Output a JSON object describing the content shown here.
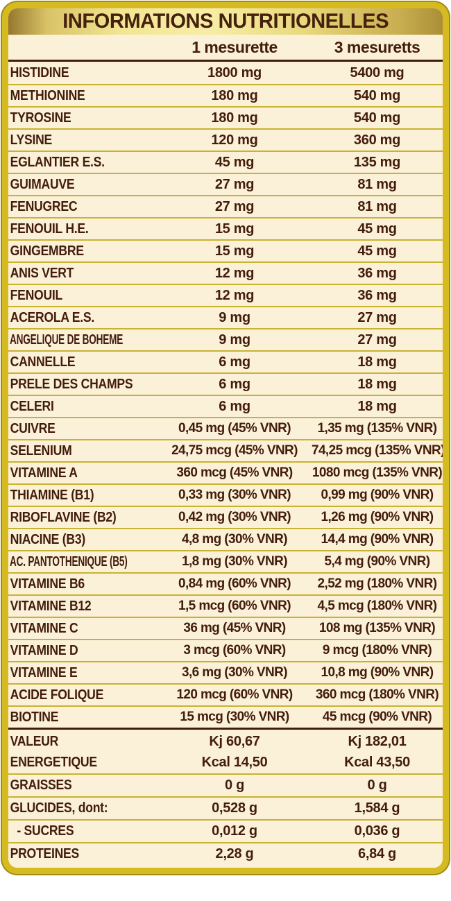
{
  "title": "INFORMATIONS NUTRITIONELLES",
  "columns": {
    "col1": "1 mesurette",
    "col2": "3 mesuretts"
  },
  "colors": {
    "border_gold": "#d5ba21",
    "border_outline": "#a28c15",
    "background_cream": "#fbf1d9",
    "separator_yellow": "#c8b232",
    "separator_dark": "#3f1c0c",
    "text_maroon": "#431c0c",
    "band_gradient_light": "#f7eda6",
    "band_gradient_dark": "#96782e"
  },
  "table": {
    "rows": [
      {
        "label": "HISTIDINE",
        "v1": "1800 mg",
        "v2": "5400 mg"
      },
      {
        "label": "METHIONINE",
        "v1": "180 mg",
        "v2": "540 mg"
      },
      {
        "label": "TYROSINE",
        "v1": "180 mg",
        "v2": "540 mg"
      },
      {
        "label": "LYSINE",
        "v1": "120 mg",
        "v2": "360 mg"
      },
      {
        "label": "EGLANTIER E.S.",
        "v1": "45 mg",
        "v2": "135 mg"
      },
      {
        "label": "GUIMAUVE",
        "v1": "27 mg",
        "v2": "81 mg"
      },
      {
        "label": "FENUGREC",
        "v1": "27 mg",
        "v2": "81 mg"
      },
      {
        "label": "FENOUIL H.E.",
        "v1": "15 mg",
        "v2": "45 mg"
      },
      {
        "label": "GINGEMBRE",
        "v1": "15 mg",
        "v2": "45 mg"
      },
      {
        "label": "ANIS VERT",
        "v1": "12 mg",
        "v2": "36 mg"
      },
      {
        "label": "FENOUIL",
        "v1": "12 mg",
        "v2": "36 mg"
      },
      {
        "label": "ACEROLA E.S.",
        "v1": "9 mg",
        "v2": "27 mg"
      },
      {
        "label": "ANGELIQUE DE BOHEME",
        "v1": "9 mg",
        "v2": "27 mg",
        "condensed": true
      },
      {
        "label": "CANNELLE",
        "v1": "6 mg",
        "v2": "18 mg"
      },
      {
        "label": "PRELE DES CHAMPS",
        "v1": "6 mg",
        "v2": "18 mg"
      },
      {
        "label": "CELERI",
        "v1": "6 mg",
        "v2": "18 mg"
      },
      {
        "label": "CUIVRE",
        "v1": "0,45 mg (45% VNR)",
        "v2": "1,35 mg (135% VNR)"
      },
      {
        "label": "SELENIUM",
        "v1": "24,75 mcg (45% VNR)",
        "v2": "74,25 mcg (135% VNR)"
      },
      {
        "label": "VITAMINE A",
        "v1": "360 mcg (45% VNR)",
        "v2": "1080 mcg (135% VNR)"
      },
      {
        "label": "THIAMINE (B1)",
        "v1": "0,33 mg (30% VNR)",
        "v2": "0,99 mg (90% VNR)"
      },
      {
        "label": "RIBOFLAVINE (B2)",
        "v1": "0,42 mg (30% VNR)",
        "v2": "1,26 mg (90% VNR)"
      },
      {
        "label": "NIACINE (B3)",
        "v1": "4,8 mg (30% VNR)",
        "v2": "14,4 mg (90% VNR)"
      },
      {
        "label": "AC. PANTOTHENIQUE (B5)",
        "v1": "1,8 mg (30% VNR)",
        "v2": "5,4 mg (90% VNR)",
        "condensed": true
      },
      {
        "label": "VITAMINE B6",
        "v1": "0,84 mg (60% VNR)",
        "v2": "2,52 mg (180% VNR)"
      },
      {
        "label": "VITAMINE B12",
        "v1": "1,5 mcg (60% VNR)",
        "v2": "4,5 mcg (180% VNR)"
      },
      {
        "label": "VITAMINE C",
        "v1": "36 mg (45% VNR)",
        "v2": "108 mg (135% VNR)"
      },
      {
        "label": "VITAMINE D",
        "v1": "3 mcg (60% VNR)",
        "v2": "9 mcg (180% VNR)"
      },
      {
        "label": "VITAMINE E",
        "v1": "3,6 mg (30% VNR)",
        "v2": "10,8 mg (90% VNR)"
      },
      {
        "label": "ACIDE FOLIQUE",
        "v1": "120 mcg (60% VNR)",
        "v2": "360 mcg (180% VNR)"
      },
      {
        "label": "BIOTINE",
        "v1": "15 mcg (30% VNR)",
        "v2": "45 mcg (90% VNR)"
      }
    ],
    "energy_row": {
      "label_line1": "VALEUR",
      "label_line2": "ENERGETIQUE",
      "v1_line1": "Kj 60,67",
      "v1_line2": "Kcal 14,50",
      "v2_line1": "Kj 182,01",
      "v2_line2": "Kcal 43,50"
    },
    "footer_rows": [
      {
        "label": "GRAISSES",
        "v1": "0 g",
        "v2": "0 g"
      },
      {
        "label": "GLUCIDES, dont:",
        "v1": "0,528 g",
        "v2": "1,584 g"
      },
      {
        "label": "- SUCRES",
        "v1": "0,012 g",
        "v2": "0,036 g",
        "indent": true
      },
      {
        "label": "PROTEINES",
        "v1": "2,28 g",
        "v2": "6,84 g"
      }
    ]
  }
}
